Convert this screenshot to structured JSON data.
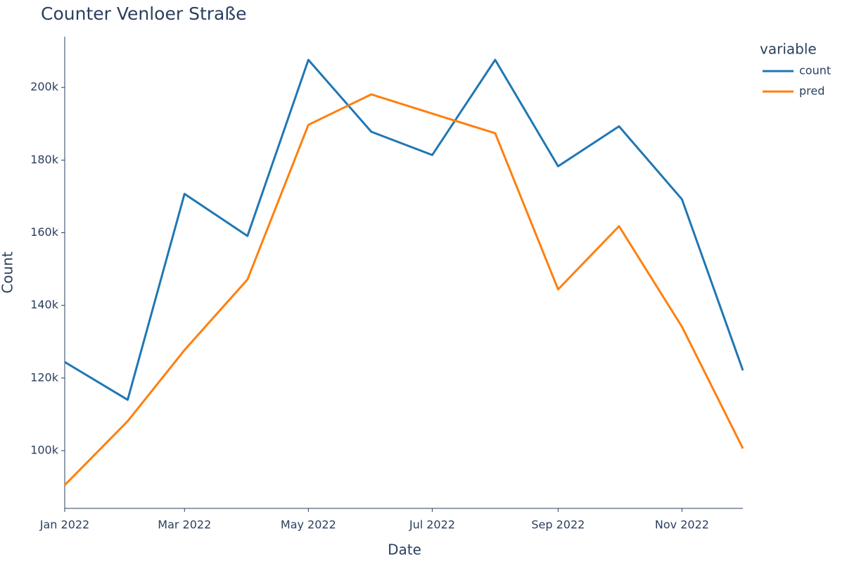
{
  "chart_data": {
    "type": "line",
    "title": "Counter Venloer Straße",
    "xlabel": "Date",
    "ylabel": "Count",
    "legend_title": "variable",
    "legend_position": "right",
    "x": [
      "2022-01",
      "2022-02",
      "2022-03",
      "2022-04",
      "2022-05",
      "2022-06",
      "2022-07",
      "2022-08",
      "2022-09",
      "2022-10",
      "2022-11",
      "2022-12"
    ],
    "series": [
      {
        "name": "count",
        "color": "#1f77b4",
        "values": [
          124400,
          114000,
          170700,
          159100,
          207600,
          187800,
          181400,
          207600,
          178300,
          189300,
          169200,
          122100
        ]
      },
      {
        "name": "pred",
        "color": "#ff7f0e",
        "values": [
          90500,
          108100,
          127700,
          147100,
          189700,
          198100,
          192800,
          187400,
          144400,
          161800,
          134100,
          100600
        ]
      }
    ],
    "xlim": [
      "2022-01",
      "2022-12"
    ],
    "xticks": [
      {
        "value": "2022-01",
        "label": "Jan 2022"
      },
      {
        "value": "2022-03",
        "label": "Mar 2022"
      },
      {
        "value": "2022-05",
        "label": "May 2022"
      },
      {
        "value": "2022-07",
        "label": "Jul 2022"
      },
      {
        "value": "2022-09",
        "label": "Sep 2022"
      },
      {
        "value": "2022-11",
        "label": "Nov 2022"
      }
    ],
    "ylim": [
      84100,
      214000
    ],
    "yticks": [
      {
        "value": 100000,
        "label": "100k"
      },
      {
        "value": 120000,
        "label": "120k"
      },
      {
        "value": 140000,
        "label": "140k"
      },
      {
        "value": 160000,
        "label": "160k"
      },
      {
        "value": 180000,
        "label": "180k"
      },
      {
        "value": 200000,
        "label": "200k"
      }
    ],
    "grid": false
  }
}
